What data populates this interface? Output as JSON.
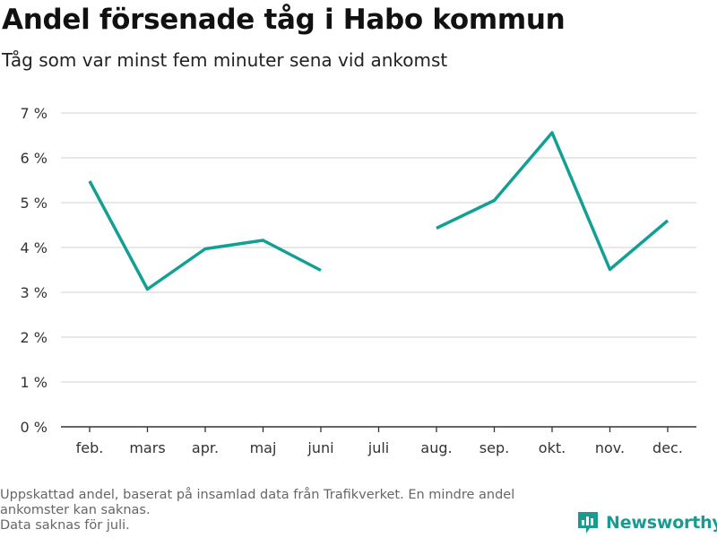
{
  "header": {
    "title": "Andel försenade tåg i Habo kommun",
    "subtitle": "Tåg som var minst fem minuter sena vid ankomst"
  },
  "chart_data": {
    "type": "line",
    "categories": [
      "feb.",
      "mars",
      "apr.",
      "maj",
      "juni",
      "juli",
      "aug.",
      "sep.",
      "okt.",
      "nov.",
      "dec."
    ],
    "series": [
      {
        "values": [
          5.48,
          3.07,
          3.97,
          4.16,
          3.49,
          null,
          4.43,
          5.05,
          6.56,
          3.51,
          4.6
        ]
      }
    ],
    "yticks": [
      "0 %",
      "1 %",
      "2 %",
      "3 %",
      "4 %",
      "5 %",
      "6 %",
      "7 %"
    ],
    "ylim": [
      0,
      7
    ],
    "grid": true,
    "xlabel": "",
    "ylabel": ""
  },
  "footer": {
    "note_line1": "Uppskattad andel, baserat på insamlad data från Trafikverket. En mindre andel",
    "note_line2": "ankomster kan saknas.",
    "note_line3": "Data saknas för juli."
  },
  "logo": {
    "text": "Newsworthy"
  },
  "colors": {
    "line": "#12a095",
    "grid": "#d9d9d9",
    "axis": "#333333",
    "brand": "#1a9b91"
  }
}
